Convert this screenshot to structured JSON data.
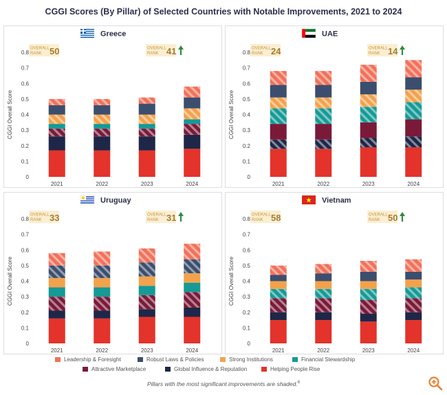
{
  "title": "CGGI Scores (By Pillar) of Selected Countries with Notable Improvements, 2021 to 2024",
  "legend": {
    "items": [
      {
        "label": "Leadership & Foresight",
        "color": "#f2715a"
      },
      {
        "label": "Robust Laws & Policies",
        "color": "#3c4e6e"
      },
      {
        "label": "Strong Institutions",
        "color": "#f3a24c"
      },
      {
        "label": "Financial Stewardship",
        "color": "#159a96"
      },
      {
        "label": "Attractive Marketplace",
        "color": "#7a1a38"
      },
      {
        "label": "Global Influence & Reputation",
        "color": "#1e2748"
      },
      {
        "label": "Helping People Rise",
        "color": "#e3332a"
      }
    ]
  },
  "footnote": "Pillars with the most significant improvements are shaded.",
  "footnote_marker": "6",
  "rank_label_line1": "OVERALL",
  "rank_label_line2": "RANK",
  "ylabel": "CGGI Overall Score",
  "chart_data": [
    {
      "type": "bar",
      "stacked": true,
      "country": "Greece",
      "flag": "greece-flag-icon",
      "rank_2021": "50",
      "rank_2024": "41",
      "title": "Greece",
      "ylabel": "CGGI Overall Score",
      "ylim": [
        0,
        0.8
      ],
      "yticks": [
        "0",
        "0.1",
        "0.2",
        "0.3",
        "0.4",
        "0.5",
        "0.6",
        "0.7",
        "0.8"
      ],
      "categories": [
        "2021",
        "2022",
        "2023",
        "2024"
      ],
      "series": [
        {
          "name": "Helping People Rise",
          "values": [
            0.17,
            0.17,
            0.17,
            0.18
          ],
          "shaded": false
        },
        {
          "name": "Global Influence & Reputation",
          "values": [
            0.09,
            0.09,
            0.09,
            0.09
          ],
          "shaded": false
        },
        {
          "name": "Attractive Marketplace",
          "values": [
            0.05,
            0.05,
            0.05,
            0.07
          ],
          "shaded": true
        },
        {
          "name": "Financial Stewardship",
          "values": [
            0.03,
            0.03,
            0.03,
            0.03
          ],
          "shaded": false
        },
        {
          "name": "Strong Institutions",
          "values": [
            0.06,
            0.06,
            0.06,
            0.07
          ],
          "shaded": true
        },
        {
          "name": "Robust Laws & Policies",
          "values": [
            0.06,
            0.06,
            0.07,
            0.07
          ],
          "shaded": false
        },
        {
          "name": "Leadership & Foresight",
          "values": [
            0.04,
            0.04,
            0.04,
            0.07
          ],
          "shaded": true
        }
      ]
    },
    {
      "type": "bar",
      "stacked": true,
      "country": "UAE",
      "flag": "uae-flag-icon",
      "rank_2021": "24",
      "rank_2024": "14",
      "title": "UAE",
      "ylabel": "CGGI Overall Score",
      "ylim": [
        0,
        0.8
      ],
      "yticks": [
        "0",
        "0.1",
        "0.2",
        "0.3",
        "0.4",
        "0.5",
        "0.6",
        "0.7",
        "0.8"
      ],
      "categories": [
        "2021",
        "2022",
        "2023",
        "2024"
      ],
      "series": [
        {
          "name": "Helping People Rise",
          "values": [
            0.18,
            0.18,
            0.19,
            0.19
          ],
          "shaded": false
        },
        {
          "name": "Global Influence & Reputation",
          "values": [
            0.06,
            0.06,
            0.06,
            0.07
          ],
          "shaded": true
        },
        {
          "name": "Attractive Marketplace",
          "values": [
            0.1,
            0.1,
            0.1,
            0.11
          ],
          "shaded": false
        },
        {
          "name": "Financial Stewardship",
          "values": [
            0.1,
            0.1,
            0.1,
            0.11
          ],
          "shaded": true
        },
        {
          "name": "Strong Institutions",
          "values": [
            0.07,
            0.07,
            0.08,
            0.08
          ],
          "shaded": true
        },
        {
          "name": "Robust Laws & Policies",
          "values": [
            0.08,
            0.08,
            0.08,
            0.08
          ],
          "shaded": false
        },
        {
          "name": "Leadership & Foresight",
          "values": [
            0.09,
            0.09,
            0.11,
            0.11
          ],
          "shaded": true
        }
      ]
    },
    {
      "type": "bar",
      "stacked": true,
      "country": "Uruguay",
      "flag": "uruguay-flag-icon",
      "rank_2021": "33",
      "rank_2024": "31",
      "title": "Uruguay",
      "ylabel": "CGGI Overall Score",
      "ylim": [
        0,
        0.8
      ],
      "yticks": [
        "0",
        "0.1",
        "0.2",
        "0.3",
        "0.4",
        "0.5",
        "0.6",
        "0.7",
        "0.8"
      ],
      "categories": [
        "2021",
        "2022",
        "2023",
        "2024"
      ],
      "series": [
        {
          "name": "Helping People Rise",
          "values": [
            0.16,
            0.16,
            0.17,
            0.17
          ],
          "shaded": false
        },
        {
          "name": "Global Influence & Reputation",
          "values": [
            0.05,
            0.05,
            0.05,
            0.06
          ],
          "shaded": false
        },
        {
          "name": "Attractive Marketplace",
          "values": [
            0.09,
            0.09,
            0.09,
            0.1
          ],
          "shaded": true
        },
        {
          "name": "Financial Stewardship",
          "values": [
            0.06,
            0.06,
            0.06,
            0.06
          ],
          "shaded": false
        },
        {
          "name": "Strong Institutions",
          "values": [
            0.06,
            0.06,
            0.06,
            0.06
          ],
          "shaded": false
        },
        {
          "name": "Robust Laws & Policies",
          "values": [
            0.08,
            0.08,
            0.09,
            0.09
          ],
          "shaded": true
        },
        {
          "name": "Leadership & Foresight",
          "values": [
            0.08,
            0.09,
            0.09,
            0.1
          ],
          "shaded": true
        }
      ]
    },
    {
      "type": "bar",
      "stacked": true,
      "country": "Vietnam",
      "flag": "vietnam-flag-icon",
      "rank_2021": "58",
      "rank_2024": "50",
      "title": "Vietnam",
      "ylabel": "CGGI Overall Score",
      "ylim": [
        0,
        0.8
      ],
      "yticks": [
        "0",
        "0.1",
        "0.2",
        "0.3",
        "0.4",
        "0.5",
        "0.6",
        "0.7",
        "0.8"
      ],
      "categories": [
        "2021",
        "2022",
        "2023",
        "2024"
      ],
      "series": [
        {
          "name": "Helping People Rise",
          "values": [
            0.15,
            0.15,
            0.14,
            0.15
          ],
          "shaded": false
        },
        {
          "name": "Global Influence & Reputation",
          "values": [
            0.05,
            0.05,
            0.05,
            0.05
          ],
          "shaded": false
        },
        {
          "name": "Attractive Marketplace",
          "values": [
            0.09,
            0.09,
            0.09,
            0.09
          ],
          "shaded": true
        },
        {
          "name": "Financial Stewardship",
          "values": [
            0.06,
            0.06,
            0.07,
            0.07
          ],
          "shaded": true
        },
        {
          "name": "Strong Institutions",
          "values": [
            0.05,
            0.05,
            0.05,
            0.05
          ],
          "shaded": false
        },
        {
          "name": "Robust Laws & Policies",
          "values": [
            0.04,
            0.05,
            0.06,
            0.05
          ],
          "shaded": false
        },
        {
          "name": "Leadership & Foresight",
          "values": [
            0.06,
            0.06,
            0.07,
            0.08
          ],
          "shaded": true
        }
      ]
    }
  ]
}
